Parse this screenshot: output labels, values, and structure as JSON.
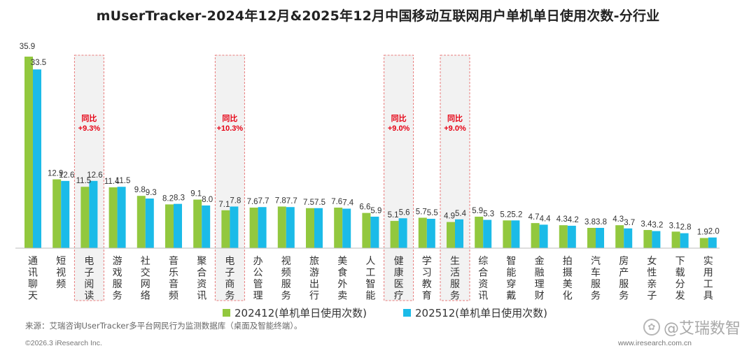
{
  "title": "mUserTracker-2024年12月&2025年12月中国移动互联网用户单机单日使用次数-分行业",
  "legend": {
    "series1": "202412(单机单日使用次数)",
    "series2": "202512(单机单日使用次数)"
  },
  "source": "来源：艾瑞咨询UserTracker多平台网民行为监测数据库（桌面及智能终端）。",
  "copyright": "©2026.3 iResearch Inc.",
  "website": "www.iresearch.com.cn",
  "watermark": "@艾瑞数智",
  "colors": {
    "series1": "#92c83e",
    "series2": "#1bbbe8",
    "highlight": "#e60012"
  },
  "chart_data": {
    "type": "bar",
    "categories": [
      "通讯聊天",
      "短视频",
      "电子阅读",
      "游戏服务",
      "社交网络",
      "音乐音频",
      "聚合资讯",
      "电子商务",
      "办公管理",
      "视频服务",
      "旅游出行",
      "美食外卖",
      "人工智能",
      "健康医疗",
      "学习教育",
      "生活服务",
      "综合资讯",
      "智能穿戴",
      "金融理财",
      "拍摄美化",
      "汽车服务",
      "房产服务",
      "女性亲子",
      "下载分发",
      "实用工具"
    ],
    "series": [
      {
        "name": "202412(单机单日使用次数)",
        "values": [
          35.9,
          12.9,
          11.5,
          11.4,
          9.8,
          8.2,
          9.1,
          7.1,
          7.6,
          7.8,
          7.5,
          7.6,
          6.6,
          5.1,
          5.7,
          4.9,
          5.9,
          5.2,
          4.7,
          4.3,
          3.8,
          4.3,
          3.4,
          3.1,
          1.9
        ]
      },
      {
        "name": "202512(单机单日使用次数)",
        "values": [
          33.5,
          12.6,
          12.6,
          11.5,
          9.3,
          8.3,
          8.0,
          7.8,
          7.7,
          7.7,
          7.5,
          7.4,
          5.9,
          5.6,
          5.5,
          5.4,
          5.3,
          5.2,
          4.4,
          4.2,
          3.8,
          3.7,
          3.2,
          2.8,
          2.0
        ]
      }
    ],
    "annotations": [
      {
        "category": "电子阅读",
        "line1": "同比",
        "line2": "+9.3%"
      },
      {
        "category": "电子商务",
        "line1": "同比",
        "line2": "+10.3%"
      },
      {
        "category": "健康医疗",
        "line1": "同比",
        "line2": "+9.0%"
      },
      {
        "category": "生活服务",
        "line1": "同比",
        "line2": "+9.0%"
      }
    ]
  }
}
